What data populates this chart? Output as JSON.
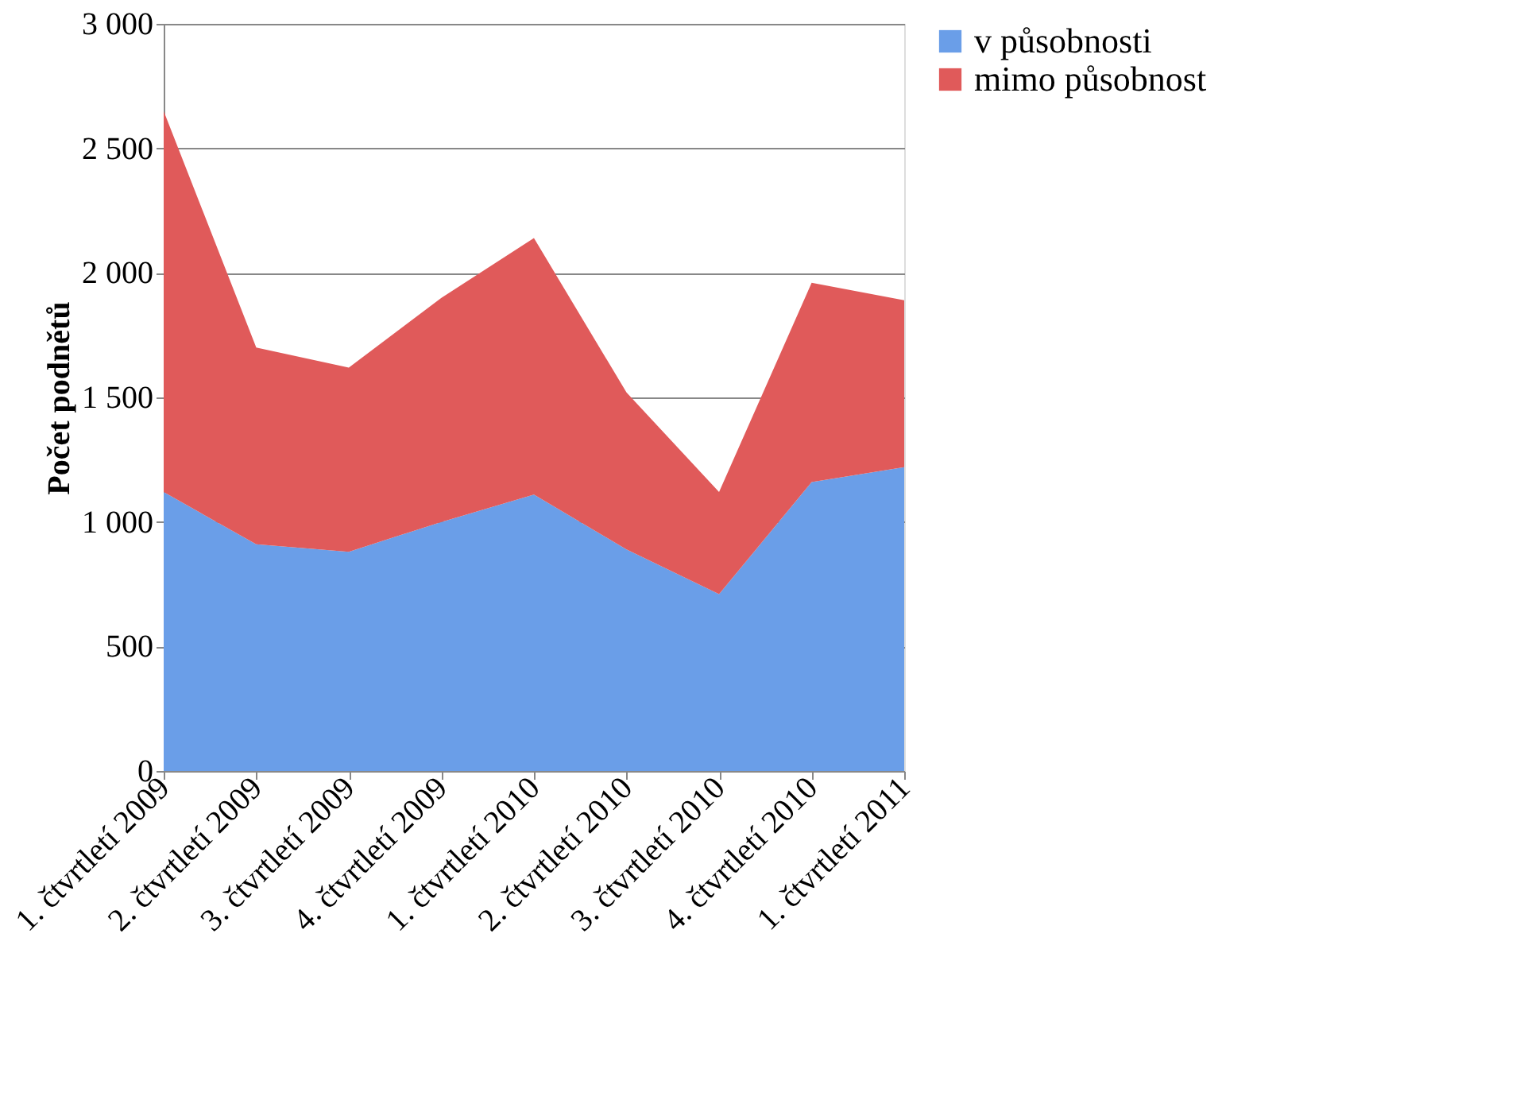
{
  "chart_data": {
    "type": "area",
    "ylabel": "Počet podnětů",
    "stacked": true,
    "legend": "right",
    "grid": "y",
    "categories": [
      "1. čtvrtletí 2009",
      "2. čtvrtletí 2009",
      "3. čtvrtletí 2009",
      "4. čtvrtletí 2009",
      "1. čtvrtletí 2010",
      "2. čtvrtletí 2010",
      "3. čtvrtletí 2010",
      "4. čtvrtletí 2010",
      "1. čtvrtletí 2011"
    ],
    "ylim": [
      0,
      3000
    ],
    "yticks": [
      {
        "value": 0,
        "label": "0"
      },
      {
        "value": 500,
        "label": "500"
      },
      {
        "value": 1000,
        "label": "1 000"
      },
      {
        "value": 1500,
        "label": "1 500"
      },
      {
        "value": 2000,
        "label": "2 000"
      },
      {
        "value": 2500,
        "label": "2 500"
      },
      {
        "value": 3000,
        "label": "3 000"
      }
    ],
    "series": [
      {
        "name": "v působnosti",
        "color": "#6a9ee8",
        "values": [
          1120,
          910,
          880,
          1000,
          1110,
          890,
          710,
          1160,
          1220
        ]
      },
      {
        "name": "mimo působnost",
        "color": "#e05a5a",
        "values": [
          1530,
          790,
          740,
          900,
          1030,
          630,
          410,
          800,
          670
        ]
      }
    ]
  }
}
